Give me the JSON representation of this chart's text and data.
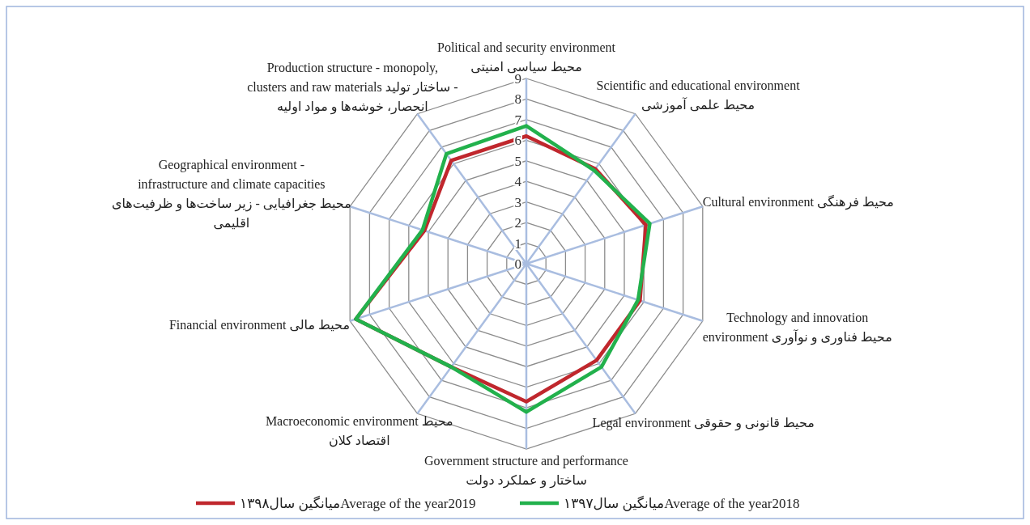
{
  "chart_data": {
    "type": "radar",
    "categories": [
      "Political and security environment\nمحیط سیاسی امنیتی",
      "Scientific and educational environment\nمحیط علمی آموزشی",
      "Cultural environment محیط فرهنگی",
      "Technology and innovation\nenvironment محیط فناوری و نوآوری",
      "Legal environment محیط قانونی و حقوقی",
      "Government structure and performance\nساختار و عملکرد دولت",
      "Macroeconomic environment محیط\nاقتصاد کلان",
      "Financial environment محیط مالی",
      "Geographical environment -\ninfrastructure and climate capacities\nمحیط جغرافیایی - زیر ساخت‌ها و ظرفیت‌های\nاقلیمی",
      "Production structure - monopoly,\nclusters and raw materials  ساختار تولید -\nانحصار، خوشه‌ها و مواد اولیه"
    ],
    "series": [
      {
        "name": "میانگین سال۱۳۹۸Average of the year2019",
        "color": "#c0272d",
        "values": [
          6.2,
          5.7,
          6.1,
          5.8,
          5.8,
          6.7,
          6.2,
          8.7,
          5.2,
          6.2
        ]
      },
      {
        "name": "میانگین سال۱۳۹۷Average of the year2018",
        "color": "#22b14c",
        "values": [
          6.7,
          5.6,
          6.3,
          5.7,
          6.2,
          7.2,
          6.2,
          8.7,
          5.3,
          6.6
        ]
      }
    ],
    "ylim": [
      0,
      9
    ],
    "yticks": [
      0,
      1,
      2,
      3,
      4,
      5,
      6,
      7,
      8,
      9
    ],
    "grid": true,
    "legend": "bottom",
    "marker": "none",
    "line_style": "solid"
  }
}
